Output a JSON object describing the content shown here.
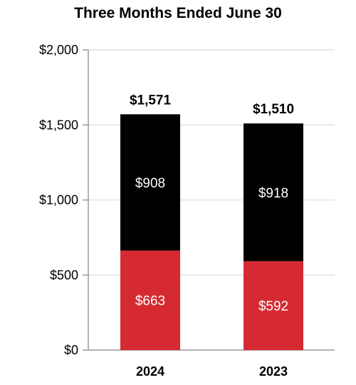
{
  "chart_data": {
    "type": "bar",
    "stacked": true,
    "title": "Three Months Ended June 30",
    "categories": [
      "2024",
      "2023"
    ],
    "series": [
      {
        "values": [
          663,
          592
        ],
        "labels": [
          "$663",
          "$592"
        ],
        "color": "#d62a32"
      },
      {
        "values": [
          908,
          918
        ],
        "labels": [
          "$908",
          "$918"
        ],
        "color": "#000000"
      }
    ],
    "totals": [
      1571,
      1510
    ],
    "total_labels": [
      "$1,571",
      "$1,510"
    ],
    "ylim": [
      0,
      2000
    ],
    "yticks": [
      0,
      500,
      1000,
      1500,
      2000
    ],
    "ytick_labels": [
      "$0",
      "$500",
      "$1,000",
      "$1,500",
      "$2,000"
    ],
    "grid": true,
    "gridline_color": "#e2e2e2",
    "axis_color": "#9a9a9a"
  }
}
